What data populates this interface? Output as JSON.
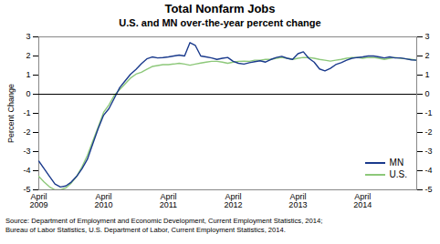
{
  "chart_data": {
    "type": "line",
    "title": "Total Nonfarm Jobs",
    "subtitle": "U.S. and MN over-the-year percent change",
    "ylabel": "Percent Change",
    "source": "Source: Department of Employment and Economic Development, Current Employment Statistics, 2014;\nBureau of Labor Statistics, U.S. Department of Labor, Current Employment Statistics, 2014.",
    "categories": [
      "April\n2009",
      null,
      null,
      null,
      null,
      null,
      null,
      null,
      null,
      null,
      null,
      null,
      "April\n2010",
      null,
      null,
      null,
      null,
      null,
      null,
      null,
      null,
      null,
      null,
      null,
      "April\n2011",
      null,
      null,
      null,
      null,
      null,
      null,
      null,
      null,
      null,
      null,
      null,
      "April\n2012",
      null,
      null,
      null,
      null,
      null,
      null,
      null,
      null,
      null,
      null,
      null,
      "April\n2013",
      null,
      null,
      null,
      null,
      null,
      null,
      null,
      null,
      null,
      null,
      null,
      "April\n2014",
      null,
      null,
      null,
      null,
      null,
      null,
      null,
      null,
      null,
      null
    ],
    "series": [
      {
        "name": "MN",
        "color": "#1a3a8c",
        "values": [
          -3.5,
          -3.9,
          -4.3,
          -4.7,
          -4.85,
          -4.8,
          -4.6,
          -4.3,
          -3.9,
          -3.4,
          -2.6,
          -1.8,
          -1.1,
          -0.75,
          -0.2,
          0.35,
          0.7,
          1.05,
          1.3,
          1.6,
          1.85,
          1.95,
          1.9,
          1.92,
          1.95,
          2.0,
          2.05,
          2.0,
          2.7,
          2.55,
          2.0,
          1.95,
          1.9,
          1.82,
          1.88,
          1.92,
          1.72,
          1.62,
          1.58,
          1.65,
          1.7,
          1.75,
          1.68,
          1.82,
          1.92,
          1.98,
          1.88,
          1.82,
          2.12,
          2.22,
          1.88,
          1.68,
          1.32,
          1.22,
          1.35,
          1.55,
          1.65,
          1.78,
          1.88,
          1.92,
          1.95,
          2.0,
          2.0,
          1.95,
          1.9,
          1.95,
          1.9,
          1.9,
          1.85,
          1.8,
          1.78
        ]
      },
      {
        "name": "U.S.",
        "color": "#8dc87a",
        "values": [
          -4.3,
          -4.6,
          -4.85,
          -5.0,
          -5.0,
          -4.9,
          -4.65,
          -4.3,
          -3.8,
          -3.2,
          -2.45,
          -1.72,
          -0.95,
          -0.55,
          -0.05,
          0.25,
          0.55,
          0.85,
          1.05,
          1.15,
          1.3,
          1.45,
          1.5,
          1.55,
          1.55,
          1.58,
          1.62,
          1.58,
          1.52,
          1.58,
          1.63,
          1.68,
          1.72,
          1.72,
          1.68,
          1.62,
          1.68,
          1.72,
          1.73,
          1.72,
          1.78,
          1.78,
          1.82,
          1.82,
          1.88,
          1.92,
          1.88,
          1.82,
          1.88,
          1.92,
          1.92,
          1.88,
          1.82,
          1.78,
          1.73,
          1.78,
          1.82,
          1.88,
          1.92,
          1.92,
          1.88,
          1.92,
          1.92,
          1.88,
          1.82,
          1.88,
          1.92,
          1.88,
          1.85,
          1.82,
          1.78
        ]
      }
    ],
    "ylim": [
      -5,
      3
    ],
    "yticks": [
      -5,
      -4,
      -3,
      -2,
      -1,
      0,
      1,
      2,
      3
    ],
    "legend": "lower right"
  }
}
